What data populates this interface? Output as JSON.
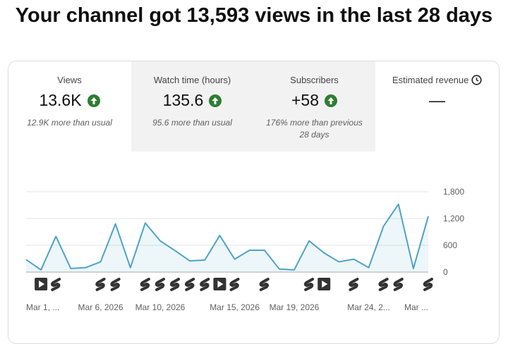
{
  "header": {
    "title": "Your channel got 13,593 views in the last 28 days"
  },
  "metrics": [
    {
      "label": "Views",
      "value": "13.6K",
      "note": "12.9K more than usual"
    },
    {
      "label": "Watch time (hours)",
      "value": "135.6",
      "note": "95.6 more than usual"
    },
    {
      "label": "Subscribers",
      "value": "+58",
      "note": "176% more than previous 28 days"
    },
    {
      "label": "Estimated revenue",
      "value": "—"
    }
  ],
  "chart_data": {
    "type": "line",
    "categories": [
      "Mar 1, ...",
      null,
      null,
      null,
      null,
      "Mar 6, 2026",
      null,
      null,
      null,
      "Mar 10, 2026",
      null,
      null,
      null,
      null,
      "Mar 15, 2026",
      null,
      null,
      null,
      "Mar 19, 2026",
      null,
      null,
      null,
      null,
      "Mar 24, 2...",
      null,
      null,
      null,
      "Mar ..."
    ],
    "series": [
      {
        "color": "#4ea3c7",
        "values": [
          280,
          50,
          800,
          80,
          100,
          230,
          1080,
          100,
          1100,
          700,
          480,
          250,
          270,
          820,
          290,
          490,
          490,
          70,
          50,
          700,
          430,
          230,
          290,
          100,
          1030,
          1520,
          80,
          1250
        ]
      }
    ],
    "ylim": [
      0,
      1800
    ],
    "yticks": [
      0,
      600,
      {
        "value": 1200,
        "label": "1,200"
      },
      {
        "value": 1800,
        "label": "1,800"
      }
    ],
    "grid": true
  }
}
